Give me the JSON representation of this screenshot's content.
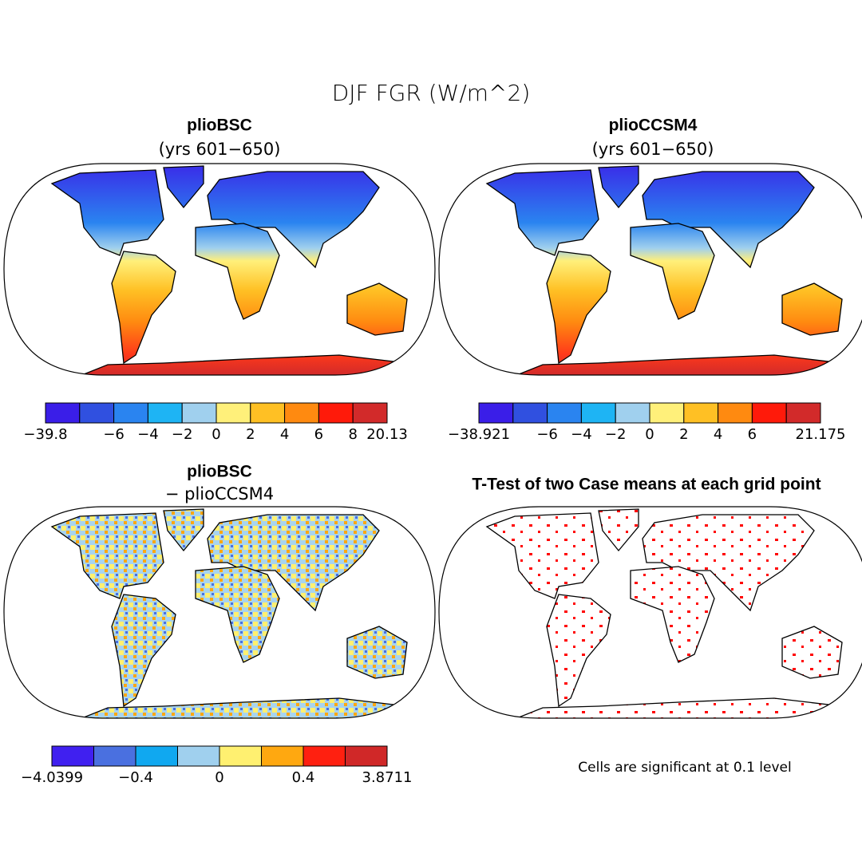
{
  "title": "DJF FGR (W/m^2)",
  "panels": [
    {
      "title": "plioBSC",
      "subtitle": "(yrs 601−650)",
      "colorbar": {
        "colors": [
          "#3a1ee8",
          "#3050e0",
          "#2a84f0",
          "#1eb4f4",
          "#a0d0ee",
          "#fff07a",
          "#ffc024",
          "#ff8a10",
          "#ff1a0a",
          "#d22a2a"
        ],
        "labels": [
          "−39.8",
          null,
          "−6",
          "−4",
          "−2",
          "0",
          "2",
          "4",
          "6",
          "8",
          "20.13"
        ]
      }
    },
    {
      "title": "plioCCSM4",
      "subtitle": "(yrs 601−650)",
      "colorbar": {
        "colors": [
          "#3a1ee8",
          "#3050e0",
          "#2a84f0",
          "#1eb4f4",
          "#a0d0ee",
          "#fff07a",
          "#ffc024",
          "#ff8a10",
          "#ff1a0a",
          "#d22a2a"
        ],
        "labels": [
          "−38.921",
          null,
          "−6",
          "−4",
          "−2",
          "0",
          "2",
          "4",
          "6",
          null,
          "21.175"
        ]
      }
    },
    {
      "title": "plioBSC",
      "subtitle": "− plioCCSM4",
      "colorbar": {
        "colors": [
          "#4020f0",
          "#4a70e0",
          "#10a8f0",
          "#a0d0ee",
          "#fff070",
          "#ffa810",
          "#ff2010",
          "#d02828"
        ],
        "labels": [
          "−4.0399",
          null,
          "−0.4",
          null,
          "0",
          null,
          "0.4",
          null,
          "3.8711"
        ]
      }
    },
    {
      "title": "T-Test of two Case means at each grid point",
      "note": "Cells are significant at 0.1 level"
    }
  ]
}
